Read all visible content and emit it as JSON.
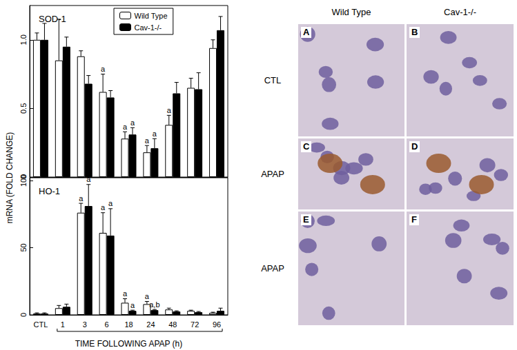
{
  "chart_data": [
    {
      "type": "bar",
      "title": "SOD-1",
      "categories": [
        "CTL",
        "1",
        "3",
        "6",
        "18",
        "24",
        "48",
        "72",
        "96"
      ],
      "series": [
        {
          "name": "Wild Type",
          "color": "#ffffff",
          "values": [
            1.0,
            0.85,
            0.88,
            0.62,
            0.28,
            0.18,
            0.38,
            0.65,
            0.94
          ],
          "errors": [
            0.05,
            0.3,
            0.04,
            0.13,
            0.05,
            0.05,
            0.07,
            0.07,
            0.06
          ],
          "annotations": [
            null,
            null,
            null,
            "a",
            "a",
            "a",
            "a",
            null,
            null
          ]
        },
        {
          "name": "Cav-1-/-",
          "color": "#000000",
          "values": [
            1.0,
            0.95,
            0.68,
            0.58,
            0.31,
            0.21,
            0.61,
            0.64,
            1.07
          ],
          "errors": [
            0.12,
            0.07,
            0.06,
            0.05,
            0.05,
            0.07,
            0.08,
            0.12,
            0.1
          ],
          "annotations": [
            null,
            null,
            null,
            null,
            "a",
            "a",
            null,
            null,
            null
          ]
        }
      ],
      "ylim": [
        0,
        1.25
      ],
      "yticks": [
        0,
        0.5,
        {
          "value": 1,
          "label": "1.0"
        }
      ],
      "grid": false,
      "legend": "top-right",
      "tick_labels": "y"
    },
    {
      "type": "bar",
      "title": "HO-1",
      "categories": [
        "CTL",
        "1",
        "3",
        "6",
        "18",
        "24",
        "48",
        "72",
        "96"
      ],
      "series": [
        {
          "name": "Wild Type",
          "color": "#ffffff",
          "values": [
            1,
            5,
            76,
            61,
            9,
            8,
            4,
            3,
            1.5
          ],
          "errors": [
            0.5,
            2,
            7,
            15,
            3,
            2,
            1,
            0.5,
            0.5
          ],
          "annotations": [
            null,
            null,
            "a",
            "a",
            "a",
            "a",
            null,
            null,
            null
          ]
        },
        {
          "name": "Cav-1-/-",
          "color": "#000000",
          "values": [
            1,
            6,
            81,
            59,
            3,
            3.5,
            2.5,
            2,
            3
          ],
          "errors": [
            0.5,
            2,
            16,
            20,
            0.5,
            0.5,
            0.5,
            0.5,
            2
          ],
          "annotations": [
            null,
            null,
            "a",
            "a",
            "a",
            "a,b",
            null,
            null,
            null
          ]
        }
      ],
      "ylim": [
        0,
        102
      ],
      "yticks": [
        0,
        50,
        100
      ],
      "xlabel": "TIME FOLLOWING APAP (h)",
      "grid": false
    }
  ],
  "shared_ylabel": "mRNA (FOLD CHANGE)",
  "micrographs": {
    "columns": [
      "Wild Type",
      "Cav-1-/-"
    ],
    "rows": [
      "CTL",
      "APAP",
      "APAP"
    ],
    "panels": [
      [
        "A",
        "B"
      ],
      [
        "C",
        "D"
      ],
      [
        "E",
        "F"
      ]
    ]
  }
}
